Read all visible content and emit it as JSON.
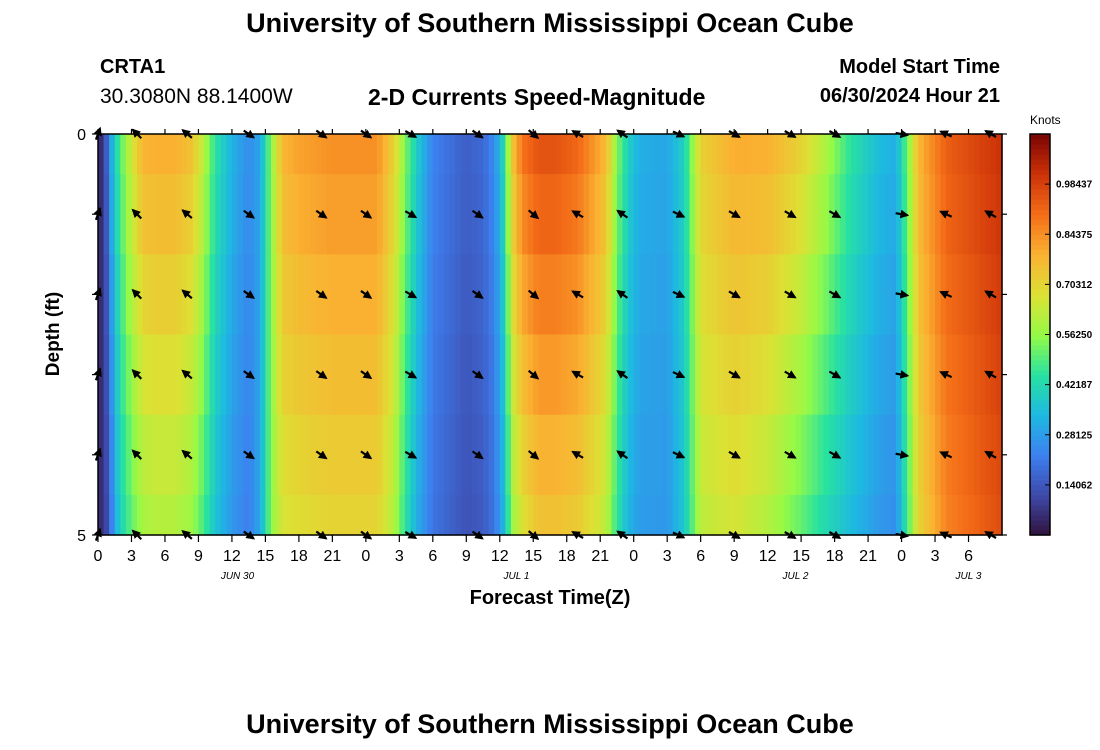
{
  "header": {
    "title": "University of Southern Mississippi Ocean Cube",
    "station": "CRTA1",
    "coordinates": "30.3080N  88.1400W",
    "subtitle": "2-D Currents Speed-Magnitude",
    "model_start_label": "Model Start Time",
    "model_start_value": "06/30/2024 Hour 21"
  },
  "footer": {
    "title": "University of Southern Mississippi Ocean Cube"
  },
  "chart_data": {
    "type": "heatmap",
    "title": "2-D Currents Speed-Magnitude",
    "xlabel": "Forecast Time(Z)",
    "ylabel": "Depth (ft)",
    "colorbar_label": "Knots",
    "colorbar_ticks": [
      "0.14062",
      "0.28125",
      "0.42187",
      "0.56250",
      "0.70312",
      "0.84375",
      "0.98437"
    ],
    "colorbar_range": [
      0,
      1.125
    ],
    "x_range": [
      0,
      81
    ],
    "y_ticks": [
      "0",
      "5"
    ],
    "y_range": [
      0,
      5
    ],
    "x_tick_labels": [
      "0",
      "3",
      "6",
      "9",
      "12",
      "15",
      "18",
      "21",
      "0",
      "3",
      "6",
      "9",
      "12",
      "15",
      "18",
      "21",
      "0",
      "3",
      "6",
      "9",
      "12",
      "15",
      "18",
      "21",
      "0",
      "3",
      "6"
    ],
    "date_labels": [
      {
        "text": "JUN 30",
        "hour": 12.5
      },
      {
        "text": "JUL 1",
        "hour": 37.5
      },
      {
        "text": "JUL 2",
        "hour": 62.5
      },
      {
        "text": "JUL 3",
        "hour": 78
      }
    ],
    "depth_rows": 5,
    "columns_per_hour": 2,
    "speed_profile": {
      "hours": [
        0,
        0.5,
        1,
        1.5,
        2,
        3,
        4,
        5,
        7,
        8.5,
        9.5,
        10.5,
        12,
        13.5,
        14.5,
        15.5,
        16.5,
        18,
        21,
        25,
        26.5,
        27.5,
        28.5,
        30,
        33,
        34.5,
        35.5,
        36.5,
        37,
        38,
        39.5,
        41,
        43,
        45.5,
        46.5,
        47.5,
        48.5,
        51,
        52.5,
        54,
        57,
        60,
        61.5,
        63,
        65,
        67.5,
        70,
        71.5,
        72.5,
        73.5,
        76,
        81
      ],
      "surface": [
        0.06,
        0.06,
        0.25,
        0.4,
        0.5,
        0.66,
        0.79,
        0.8,
        0.8,
        0.75,
        0.62,
        0.45,
        0.33,
        0.25,
        0.3,
        0.55,
        0.78,
        0.82,
        0.85,
        0.85,
        0.72,
        0.55,
        0.4,
        0.23,
        0.16,
        0.18,
        0.25,
        0.45,
        0.72,
        0.9,
        0.96,
        0.96,
        0.92,
        0.78,
        0.55,
        0.4,
        0.32,
        0.3,
        0.4,
        0.72,
        0.8,
        0.8,
        0.76,
        0.72,
        0.62,
        0.45,
        0.35,
        0.32,
        0.52,
        0.78,
        0.93,
        1.02
      ],
      "bottom": [
        0.06,
        0.06,
        0.15,
        0.3,
        0.4,
        0.5,
        0.58,
        0.6,
        0.6,
        0.56,
        0.47,
        0.36,
        0.27,
        0.22,
        0.3,
        0.55,
        0.66,
        0.68,
        0.7,
        0.7,
        0.6,
        0.45,
        0.32,
        0.2,
        0.13,
        0.15,
        0.2,
        0.35,
        0.55,
        0.66,
        0.74,
        0.74,
        0.72,
        0.62,
        0.45,
        0.33,
        0.28,
        0.27,
        0.37,
        0.62,
        0.66,
        0.6,
        0.55,
        0.5,
        0.42,
        0.34,
        0.27,
        0.25,
        0.47,
        0.7,
        0.86,
        0.96
      ],
      "depth_factors": [
        1.0,
        0.96,
        0.92,
        0.86,
        0.78,
        0.7
      ]
    },
    "arrows": {
      "hours": [
        0,
        3.5,
        8,
        13.5,
        20,
        24,
        28,
        34,
        39,
        43,
        47,
        52,
        57,
        62,
        66,
        72,
        76,
        80
      ],
      "angles": [
        -70,
        -135,
        -140,
        35,
        35,
        35,
        30,
        35,
        40,
        -150,
        -145,
        25,
        30,
        30,
        30,
        10,
        -155,
        -150
      ],
      "rows": [
        0,
        1,
        2,
        3,
        4,
        5
      ]
    }
  }
}
